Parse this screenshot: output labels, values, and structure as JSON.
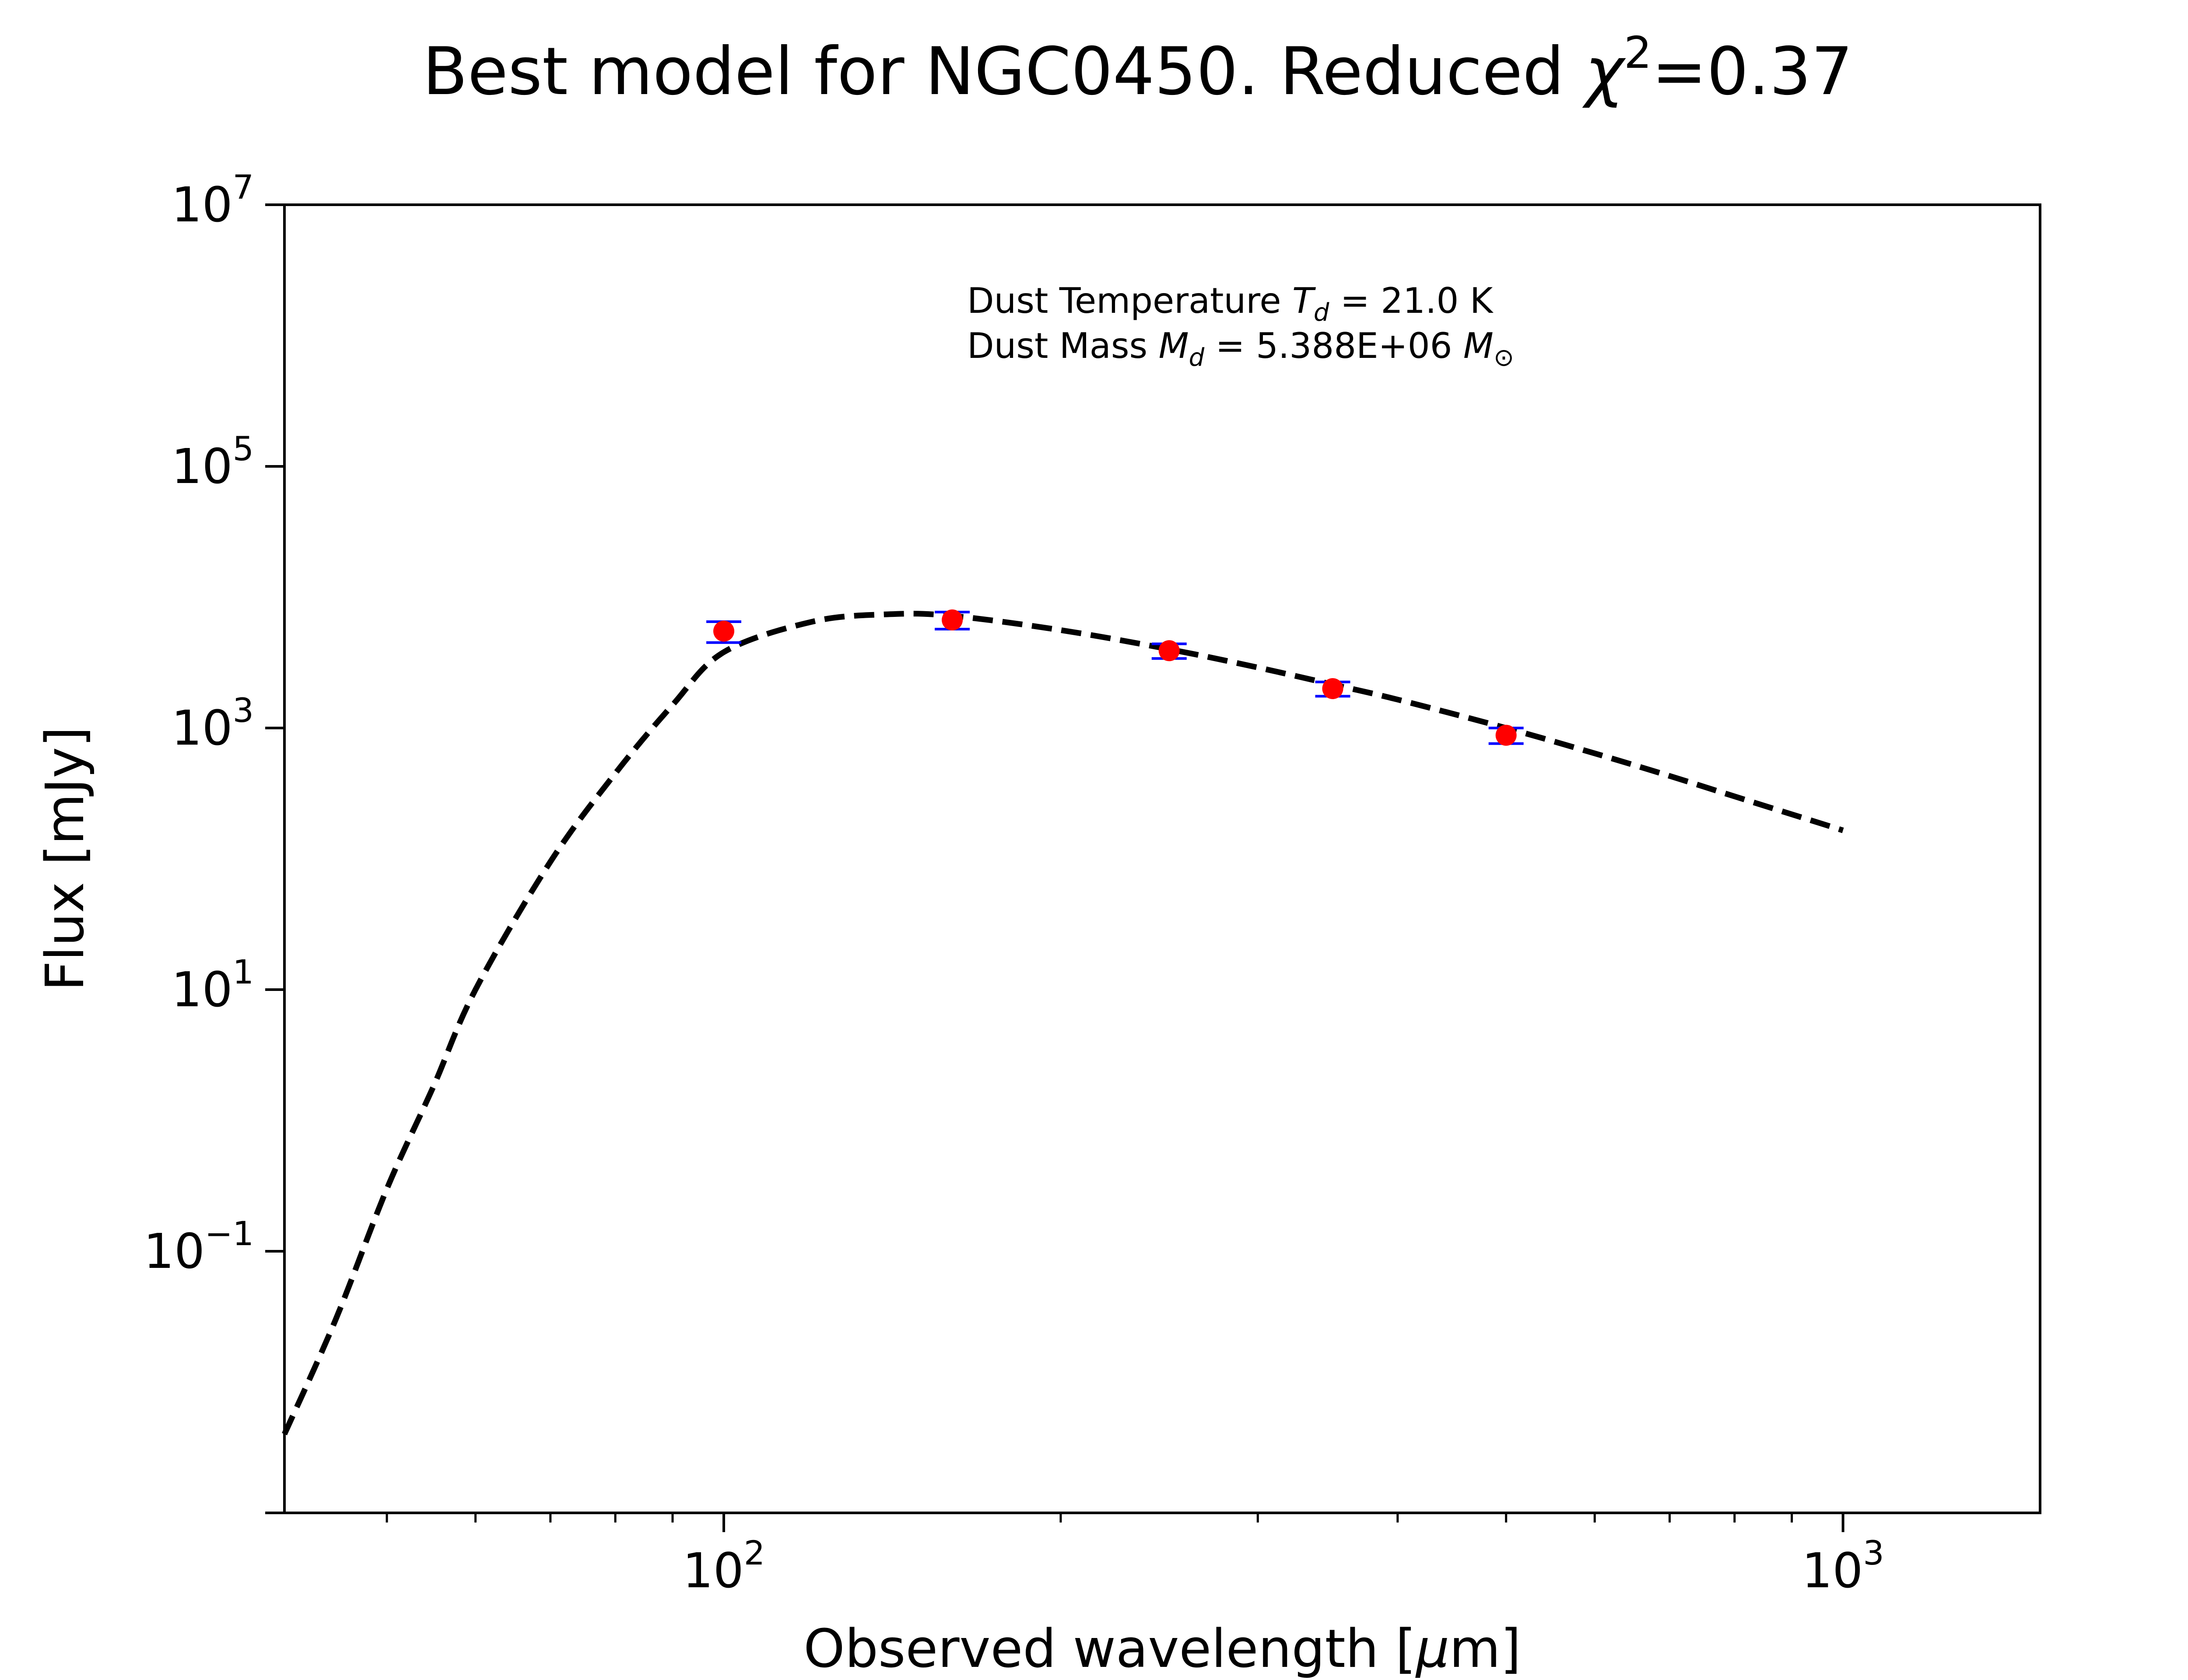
{
  "chart_data": {
    "type": "scatter",
    "title": {
      "text": "Best model for NGC0450. Reduced ",
      "symbol": "χ",
      "superscript": "2",
      "value": "=0.37"
    },
    "xlabel": {
      "text": "Observed wavelength [",
      "unit_symbol": "μ",
      "unit_rest": "m]"
    },
    "ylabel": "Flux [mJy]",
    "x_scale": "log",
    "y_scale": "log",
    "xlim": [
      40.5,
      1500
    ],
    "ylim": [
      0.001,
      10000000
    ],
    "x_ticks": [
      {
        "value": 100,
        "base": "10",
        "exp": "2"
      },
      {
        "value": 1000,
        "base": "10",
        "exp": "3"
      }
    ],
    "y_ticks": [
      {
        "value": 10000000,
        "base": "10",
        "exp": "7"
      },
      {
        "value": 100000,
        "base": "10",
        "exp": "5"
      },
      {
        "value": 1000,
        "base": "10",
        "exp": "3"
      },
      {
        "value": 10,
        "base": "10",
        "exp": "1"
      },
      {
        "value": 0.1,
        "base": "10",
        "exp": "−1"
      }
    ],
    "grid": false,
    "legend": "none",
    "annotation": {
      "line1": {
        "prefix": "Dust Temperature ",
        "symbol": "T",
        "sub": "d",
        "suffix": " = 21.0 K"
      },
      "line2": {
        "prefix": "Dust Mass ",
        "symbol": "M",
        "sub": "d",
        "value": " = 5.388E+06 ",
        "unit_symbol": "M",
        "unit_sub": "⊙"
      }
    },
    "series": [
      {
        "kind": "model",
        "style": "dashed",
        "color": "#000000",
        "x": [
          40.5,
          45,
          50,
          55,
          60,
          70,
          80,
          90,
          100,
          120,
          140,
          160,
          200,
          250,
          300,
          350,
          400,
          500,
          600,
          700,
          800,
          1000
        ],
        "y": [
          0.004,
          0.03,
          0.3,
          1.8,
          10,
          95,
          450,
          1500,
          3800,
          6500,
          7400,
          7200,
          5600,
          4000,
          2900,
          2150,
          1650,
          1000,
          640,
          430,
          300,
          165
        ]
      },
      {
        "kind": "observed",
        "marker": "circle",
        "color": "#ff0000",
        "error_color": "#0000ff",
        "x": [
          100,
          160,
          250,
          350,
          500
        ],
        "y": [
          5500,
          6700,
          3900,
          2000,
          880
        ],
        "yerr": [
          1000,
          1000,
          500,
          250,
          120
        ]
      }
    ]
  }
}
